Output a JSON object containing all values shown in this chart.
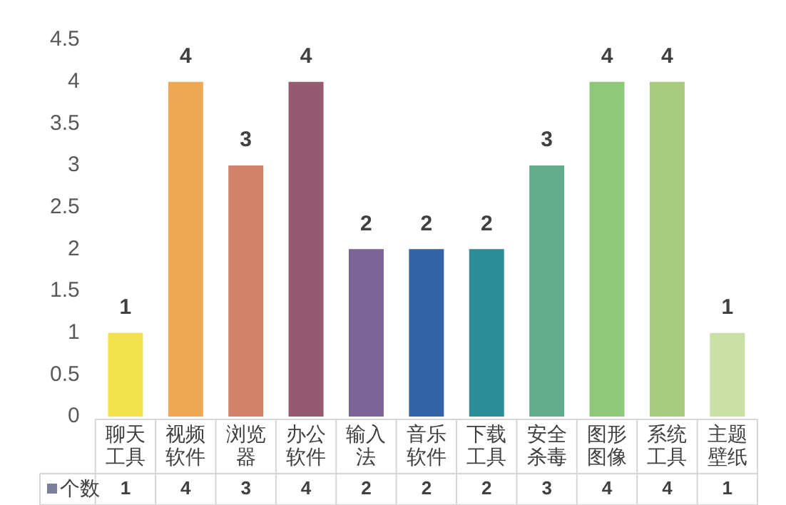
{
  "chart_data": {
    "type": "bar",
    "categories": [
      "聊天工具",
      "视频软件",
      "浏览器",
      "办公软件",
      "输入法",
      "音乐软件",
      "下载工具",
      "安全杀毒",
      "图形图像",
      "系统工具",
      "主题壁纸"
    ],
    "series": [
      {
        "name": "个数",
        "colors": [
          "#f2e34e",
          "#eca853",
          "#d0826a",
          "#965a70",
          "#7b6596",
          "#3563a8",
          "#2c8d97",
          "#63ab8c",
          "#8fc87a",
          "#a9cb80",
          "#c9dfa5"
        ],
        "values": [
          1,
          4,
          3,
          4,
          2,
          2,
          2,
          3,
          4,
          4,
          1
        ],
        "value_labels": [
          "1",
          "4",
          "3",
          "4",
          "2",
          "2",
          "2",
          "3",
          "4",
          "4",
          "1"
        ]
      }
    ],
    "ylim": [
      0,
      4.5
    ],
    "yticks": [
      0,
      0.5,
      1,
      1.5,
      2,
      2.5,
      3,
      3.5,
      4,
      4.5
    ],
    "grid": false,
    "data_labels": true
  }
}
